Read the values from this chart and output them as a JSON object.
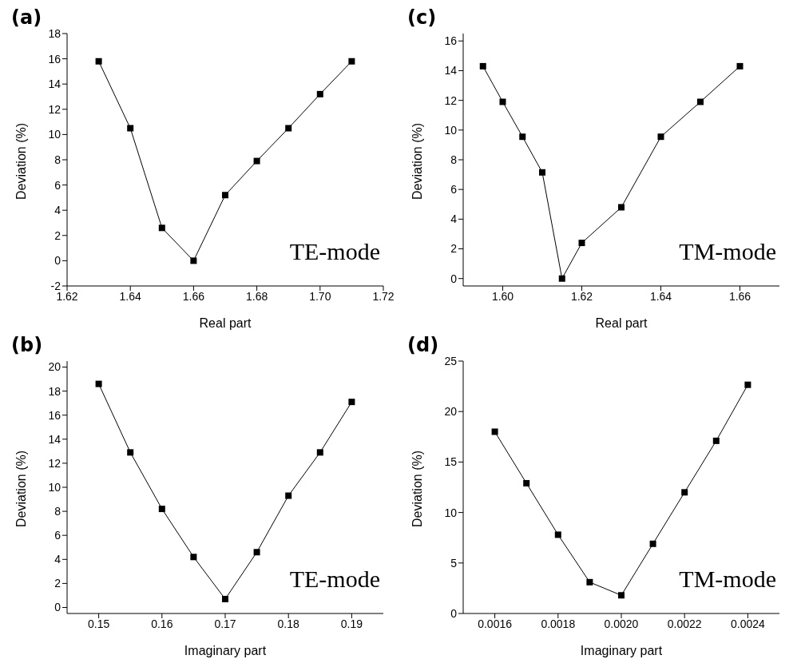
{
  "chart_data": [
    {
      "type": "line",
      "title": "(a)",
      "xlabel": "Real part",
      "ylabel": "Deviation (%)",
      "annotations": [
        "TE-mode"
      ],
      "marker": "square",
      "line_style": "solid",
      "grid": false,
      "legend": false,
      "x": [
        1.63,
        1.64,
        1.65,
        1.66,
        1.67,
        1.68,
        1.69,
        1.7,
        1.71
      ],
      "series": [
        {
          "color": "#000000",
          "values": [
            15.8,
            10.5,
            2.6,
            0,
            5.2,
            7.9,
            10.5,
            13.2,
            15.8
          ]
        }
      ],
      "xlim": [
        1.62,
        1.72
      ],
      "xticks": [
        1.62,
        1.64,
        1.66,
        1.68,
        {
          "value": 1.7,
          "label": "1.70"
        },
        1.72
      ],
      "ylim": [
        -2,
        18
      ],
      "yticks": [
        -2,
        0,
        2,
        4,
        6,
        8,
        10,
        12,
        14,
        16,
        18
      ]
    },
    {
      "type": "line",
      "title": "(c)",
      "xlabel": "Real part",
      "ylabel": "Deviation (%)",
      "annotations": [
        "TM-mode"
      ],
      "marker": "square",
      "line_style": "solid",
      "grid": false,
      "legend": false,
      "x": [
        1.595,
        1.6,
        1.605,
        1.61,
        1.615,
        1.62,
        1.63,
        1.64,
        1.65,
        1.66
      ],
      "series": [
        {
          "color": "#000000",
          "values": [
            14.3,
            11.9,
            9.55,
            7.15,
            0,
            2.4,
            4.8,
            9.55,
            11.9,
            14.3
          ]
        }
      ],
      "xlim": [
        1.59,
        1.67
      ],
      "xticks": [
        {
          "value": 1.6,
          "label": "1.60"
        },
        1.62,
        1.64,
        1.66
      ],
      "ylim": [
        -0.5,
        16.5
      ],
      "yticks": [
        0,
        2,
        4,
        6,
        8,
        10,
        12,
        14,
        16
      ]
    },
    {
      "type": "line",
      "title": "(b)",
      "xlabel": "Imaginary part",
      "ylabel": "Deviation (%)",
      "annotations": [
        "TE-mode"
      ],
      "marker": "square",
      "line_style": "solid",
      "grid": false,
      "legend": false,
      "x": [
        0.15,
        0.155,
        0.16,
        0.165,
        0.17,
        0.175,
        0.18,
        0.185,
        0.19
      ],
      "series": [
        {
          "color": "#000000",
          "values": [
            18.6,
            12.9,
            8.2,
            4.2,
            0.7,
            4.6,
            9.3,
            12.9,
            17.1
          ]
        }
      ],
      "xlim": [
        0.145,
        0.195
      ],
      "xticks": [
        0.15,
        0.16,
        0.17,
        0.18,
        0.19
      ],
      "ylim": [
        -0.5,
        20.5
      ],
      "yticks": [
        0,
        2,
        4,
        6,
        8,
        10,
        12,
        14,
        16,
        18,
        20
      ]
    },
    {
      "type": "line",
      "title": "(d)",
      "xlabel": "Imaginary part",
      "ylabel": "Deviation (%)",
      "annotations": [
        "TM-mode"
      ],
      "marker": "square",
      "line_style": "solid",
      "grid": false,
      "legend": false,
      "x": [
        0.0016,
        0.0017,
        0.0018,
        0.0019,
        0.002,
        0.0021,
        0.0022,
        0.0023,
        0.0024
      ],
      "series": [
        {
          "color": "#000000",
          "values": [
            18.0,
            12.9,
            7.8,
            3.1,
            1.8,
            6.9,
            12.0,
            17.1,
            22.65
          ]
        }
      ],
      "xlim": [
        0.0015,
        0.0025
      ],
      "xticks": [
        0.0016,
        0.0018,
        {
          "value": 0.002,
          "label": "0.0020"
        },
        0.0022,
        0.0024
      ],
      "ylim": [
        0,
        25
      ],
      "yticks": [
        0,
        5,
        10,
        15,
        20,
        25
      ]
    }
  ]
}
